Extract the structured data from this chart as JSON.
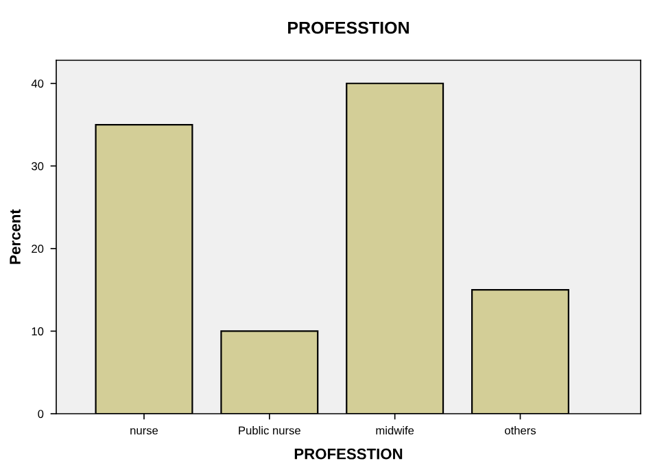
{
  "chart_data": {
    "type": "bar",
    "title": "PROFESSTION",
    "xlabel": "PROFESSTION",
    "ylabel": "Percent",
    "categories": [
      "nurse",
      "Public nurse",
      "midwife",
      "others"
    ],
    "values": [
      35,
      10,
      40,
      15
    ],
    "color": "#d3ce97",
    "ylim": [
      0,
      42.8
    ],
    "yticks": [
      0,
      10,
      20,
      30,
      40
    ],
    "grid": false,
    "legend": false
  }
}
